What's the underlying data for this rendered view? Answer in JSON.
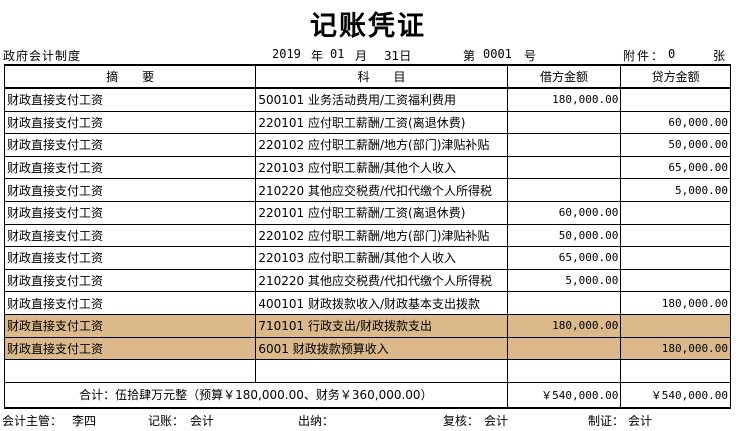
{
  "title": "记账凭证",
  "meta": {
    "system": "政府会计制度",
    "year": "2019",
    "year_unit": "年",
    "month": "01",
    "month_unit": "月",
    "day": "31日",
    "voucher_no_label": "第",
    "voucher_no": "0001",
    "voucher_no_unit": "号",
    "attachments_label": "附件：",
    "attachments": "0",
    "attachments_unit": "张"
  },
  "table": {
    "headers": [
      "摘　　要",
      "科　　目",
      "借方金额",
      "贷方金额"
    ],
    "rows": [
      {
        "summary": "财政直接支付工资",
        "account": "500101 业务活动费用/工资福利费用",
        "debit": "180,000.00",
        "credit": "",
        "highlight": false
      },
      {
        "summary": "财政直接支付工资",
        "account": "220101 应付职工薪酬/工资(离退休费)",
        "debit": "",
        "credit": "60,000.00",
        "highlight": false
      },
      {
        "summary": "财政直接支付工资",
        "account": "220102 应付职工薪酬/地方(部门)津贴补贴",
        "debit": "",
        "credit": "50,000.00",
        "highlight": false
      },
      {
        "summary": "财政直接支付工资",
        "account": "220103 应付职工薪酬/其他个人收入",
        "debit": "",
        "credit": "65,000.00",
        "highlight": false
      },
      {
        "summary": "财政直接支付工资",
        "account": "210220 其他应交税费/代扣代缴个人所得税",
        "debit": "",
        "credit": "5,000.00",
        "highlight": false
      },
      {
        "summary": "财政直接支付工资",
        "account": "220101 应付职工薪酬/工资(离退休费)",
        "debit": "60,000.00",
        "credit": "",
        "highlight": false
      },
      {
        "summary": "财政直接支付工资",
        "account": "220102 应付职工薪酬/地方(部门)津贴补贴",
        "debit": "50,000.00",
        "credit": "",
        "highlight": false
      },
      {
        "summary": "财政直接支付工资",
        "account": "220103 应付职工薪酬/其他个人收入",
        "debit": "65,000.00",
        "credit": "",
        "highlight": false
      },
      {
        "summary": "财政直接支付工资",
        "account": "210220 其他应交税费/代扣代缴个人所得税",
        "debit": "5,000.00",
        "credit": "",
        "highlight": false
      },
      {
        "summary": "财政直接支付工资",
        "account": "400101 财政拨款收入/财政基本支出拨款",
        "debit": "",
        "credit": "180,000.00",
        "highlight": false
      },
      {
        "summary": "财政直接支付工资",
        "account": "710101 行政支出/财政拨款支出",
        "debit": "180,000.00",
        "credit": "",
        "highlight": true
      },
      {
        "summary": "财政直接支付工资",
        "account": "6001 财政拨款预算收入",
        "debit": "",
        "credit": "180,000.00",
        "highlight": true
      },
      {
        "summary": "",
        "account": "",
        "debit": "",
        "credit": "",
        "highlight": false
      }
    ],
    "total_label": "合计：伍拾肆万元整（预算￥180,000.00、财务￥360,000.00）",
    "total_debit": "￥540,000.00",
    "total_credit": "￥540,000.00"
  },
  "footer": {
    "supervisor_label": "会计主管：",
    "supervisor": "李四",
    "bookkeeper_label": "记账：",
    "bookkeeper": "会计",
    "cashier_label": "出纳：",
    "cashier": "",
    "reviewer_label": "复核：",
    "reviewer": "会计",
    "preparer_label": "制证：",
    "preparer": "会计"
  }
}
